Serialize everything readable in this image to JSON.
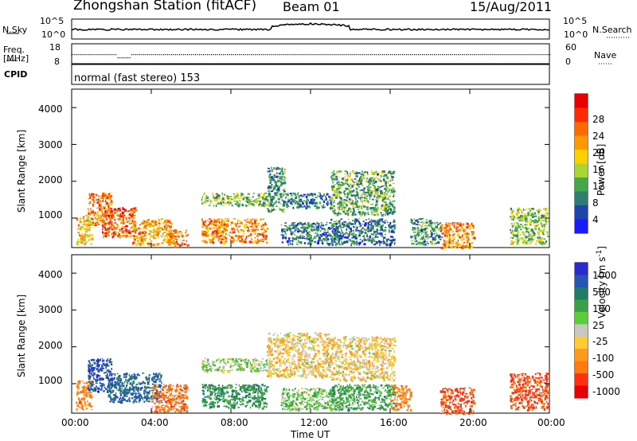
{
  "header": {
    "station_title": "Zhongshan Station (fitACF)",
    "beam": "Beam 01",
    "date": "15/Aug/2011"
  },
  "top_panels": {
    "nsky_label": "N.Sky",
    "nsearch_label": "N.Search",
    "freq_label": "Freq.",
    "freq_unit": "[MHz]",
    "nave_label": "Nave",
    "cpid_label": "CPID",
    "cpid_text": "normal (fast stereo) 153",
    "nsky_ticks": [
      "10^5",
      "10^0"
    ],
    "nsearch_ticks": [
      "10^5",
      "10^0"
    ],
    "freq_ticks": [
      "18",
      "8"
    ],
    "nave_ticks": [
      "60",
      "0"
    ]
  },
  "axes": {
    "xlabel": "Time UT",
    "x_ticks": [
      "00:00",
      "04:00",
      "08:00",
      "12:00",
      "16:00",
      "20:00",
      "00:00"
    ],
    "ylabel": "Slant Range [km]",
    "y_ticks": [
      "1000",
      "2000",
      "3000",
      "4000"
    ]
  },
  "colorbars": {
    "power": {
      "label": "Power [dB]",
      "ticks": [
        "4",
        "8",
        "12",
        "16",
        "20",
        "24",
        "28"
      ],
      "colors": [
        "#1a1aff",
        "#1e46a8",
        "#2e7d6e",
        "#43a84a",
        "#a8d632",
        "#ffd000",
        "#ff9900",
        "#ff6a00",
        "#ff2a00",
        "#e60000"
      ]
    },
    "velocity": {
      "label": "Velocity [m s",
      "label_sup": "-1",
      "label_end": "]",
      "ticks": [
        "1000",
        "500",
        "100",
        "25",
        "-25",
        "-100",
        "-500",
        "-1000"
      ],
      "colors": [
        "#2b2bcc",
        "#2656b3",
        "#1f7a66",
        "#3aa047",
        "#5ccc3a",
        "#c8c8c0",
        "#ffcc33",
        "#ff9a1a",
        "#ff7a10",
        "#ff3010",
        "#e60000"
      ]
    }
  },
  "chart_data": {
    "type": "heatmap",
    "x_range_hours": [
      0,
      24
    ],
    "y_range_km": [
      200,
      4500
    ],
    "panels": [
      {
        "name": "Power",
        "units": "dB",
        "scatter_regions": [
          {
            "t0": 0.2,
            "t1": 1.0,
            "r0": 300,
            "r1": 1100,
            "value": 18
          },
          {
            "t0": 0.8,
            "t1": 2.0,
            "r0": 800,
            "r1": 1700,
            "value": 22
          },
          {
            "t0": 1.5,
            "t1": 3.2,
            "r0": 500,
            "r1": 1300,
            "value": 24
          },
          {
            "t0": 3.0,
            "t1": 5.0,
            "r0": 300,
            "r1": 1000,
            "value": 20
          },
          {
            "t0": 4.8,
            "t1": 5.8,
            "r0": 250,
            "r1": 700,
            "value": 22
          },
          {
            "t0": 6.5,
            "t1": 9.8,
            "r0": 1350,
            "r1": 1700,
            "value": 12
          },
          {
            "t0": 6.5,
            "t1": 9.8,
            "r0": 350,
            "r1": 1000,
            "value": 22
          },
          {
            "t0": 9.8,
            "t1": 10.7,
            "r0": 1200,
            "r1": 2400,
            "value": 8
          },
          {
            "t0": 10.7,
            "t1": 13.0,
            "r0": 1300,
            "r1": 1700,
            "value": 6
          },
          {
            "t0": 10.5,
            "t1": 13.5,
            "r0": 300,
            "r1": 900,
            "value": 6
          },
          {
            "t0": 13.0,
            "t1": 16.2,
            "r0": 1100,
            "r1": 2300,
            "value": 10
          },
          {
            "t0": 13.0,
            "t1": 16.2,
            "r0": 300,
            "r1": 1000,
            "value": 6
          },
          {
            "t0": 17.0,
            "t1": 18.5,
            "r0": 300,
            "r1": 1000,
            "value": 8
          },
          {
            "t0": 18.5,
            "t1": 20.2,
            "r0": 200,
            "r1": 900,
            "value": 22
          },
          {
            "t0": 22.0,
            "t1": 23.9,
            "r0": 300,
            "r1": 1300,
            "value": 12
          }
        ]
      },
      {
        "name": "Velocity",
        "units": "m s-1",
        "scatter_regions": [
          {
            "t0": 0.2,
            "t1": 1.0,
            "r0": 300,
            "r1": 1100,
            "value": -150
          },
          {
            "t0": 0.8,
            "t1": 2.0,
            "r0": 800,
            "r1": 1700,
            "value": 800
          },
          {
            "t0": 1.8,
            "t1": 4.5,
            "r0": 500,
            "r1": 1300,
            "value": 600
          },
          {
            "t0": 4.0,
            "t1": 5.8,
            "r0": 250,
            "r1": 1000,
            "value": -200
          },
          {
            "t0": 6.5,
            "t1": 9.8,
            "r0": 1350,
            "r1": 1700,
            "value": 60
          },
          {
            "t0": 6.5,
            "t1": 9.8,
            "r0": 350,
            "r1": 1000,
            "value": 200
          },
          {
            "t0": 9.8,
            "t1": 13.0,
            "r0": 1200,
            "r1": 2400,
            "value": 0
          },
          {
            "t0": 10.5,
            "t1": 13.5,
            "r0": 300,
            "r1": 900,
            "value": 80
          },
          {
            "t0": 13.0,
            "t1": 16.2,
            "r0": 1100,
            "r1": 2300,
            "value": 0
          },
          {
            "t0": 13.0,
            "t1": 16.2,
            "r0": 300,
            "r1": 1000,
            "value": 150
          },
          {
            "t0": 16.0,
            "t1": 17.0,
            "r0": 300,
            "r1": 1000,
            "value": -150
          },
          {
            "t0": 18.5,
            "t1": 20.2,
            "r0": 200,
            "r1": 900,
            "value": -300
          },
          {
            "t0": 22.0,
            "t1": 23.9,
            "r0": 300,
            "r1": 1300,
            "value": -300
          }
        ]
      }
    ]
  }
}
